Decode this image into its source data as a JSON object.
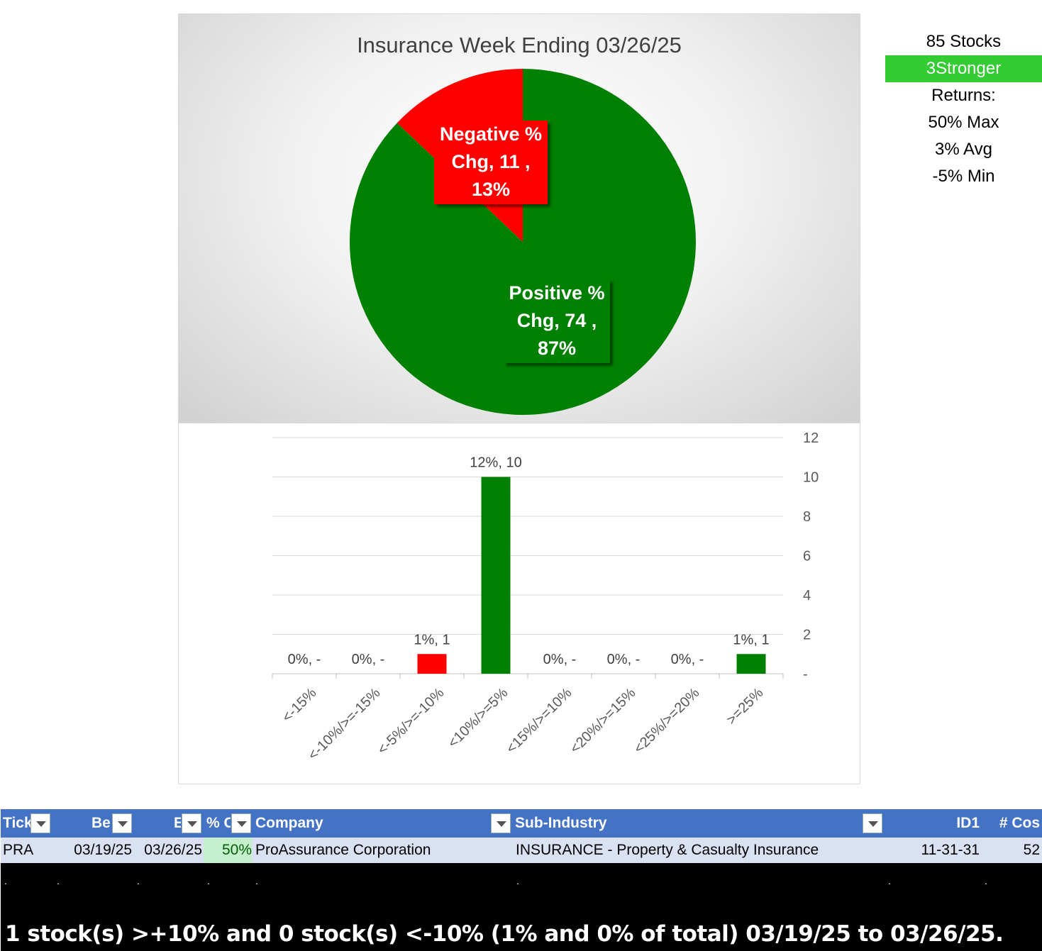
{
  "chart_data": [
    {
      "type": "pie",
      "title": "Insurance Week Ending 03/26/25",
      "slices": [
        {
          "name": "Negative % Chg",
          "value": 11,
          "percent": "13%",
          "color": "#ff0000",
          "label_lines": [
            "Negative %",
            "Chg,  11 ,",
            "13%"
          ]
        },
        {
          "name": "Positive % Chg",
          "value": 74,
          "percent": "87%",
          "color": "#008000",
          "label_lines": [
            "Positive %",
            "Chg,  74 ,",
            "87%"
          ]
        }
      ]
    },
    {
      "type": "bar",
      "categories": [
        "<-15%",
        "<-10%/>=-15%",
        "<-5%/>=-10%",
        "<10%/>=5%",
        "<15%/>=10%",
        "<20%/>=15%",
        "<25%/>=20%",
        ">=25%"
      ],
      "values": [
        0,
        0,
        1,
        10,
        0,
        0,
        0,
        1
      ],
      "data_labels": [
        "0%,  -",
        "0%,  -",
        "1%,  1",
        "12%,  10",
        "0%,  -",
        "0%,  -",
        "0%,  -",
        "1%,  1"
      ],
      "colors": [
        "#ff0000",
        "#ff0000",
        "#ff0000",
        "#008000",
        "#008000",
        "#008000",
        "#008000",
        "#008000"
      ],
      "ylim": [
        0,
        12
      ],
      "yticks": [
        "-",
        "2",
        "4",
        "6",
        "8",
        "10",
        "12"
      ],
      "y_axis_position": "right",
      "grid": true
    }
  ],
  "side_panel": {
    "stocks": "85 Stocks",
    "badge": "3Stronger",
    "returns_label": "Returns:",
    "max": "50% Max",
    "avg": "3% Avg",
    "min": "-5% Min",
    "badge_color": "#33cc33"
  },
  "table": {
    "headers": [
      "Tick",
      "Be",
      "E",
      "% C",
      "Company",
      "Sub-Industry",
      "ID1",
      "# Cos"
    ],
    "row": {
      "ticker": "PRA",
      "begin": "03/19/25",
      "end": "03/26/25",
      "pct_change": "50%",
      "company": "ProAssurance Corporation",
      "sub_industry": "INSURANCE - Property & Casualty Insurance",
      "id1": "11-31-31",
      "num_cos": "52"
    }
  },
  "footer": "1 stock(s) >+10% and 0 stock(s) <-10% (1% and 0% of total) 03/19/25 to 03/26/25."
}
